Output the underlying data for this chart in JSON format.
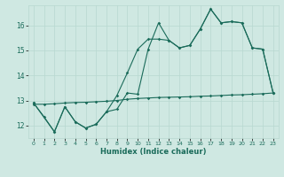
{
  "xlabel": "Humidex (Indice chaleur)",
  "bg_color": "#cfe8e2",
  "line_color": "#1a6b5a",
  "grid_color": "#b8d8d0",
  "xlim": [
    -0.5,
    23.5
  ],
  "ylim": [
    11.5,
    16.8
  ],
  "yticks": [
    12,
    13,
    14,
    15,
    16
  ],
  "xticks": [
    0,
    1,
    2,
    3,
    4,
    5,
    6,
    7,
    8,
    9,
    10,
    11,
    12,
    13,
    14,
    15,
    16,
    17,
    18,
    19,
    20,
    21,
    22,
    23
  ],
  "line1_x": [
    0,
    1,
    2,
    3,
    4,
    5,
    6,
    7,
    8,
    9,
    10,
    11,
    12,
    13,
    14,
    15,
    16,
    17,
    18,
    19,
    20,
    21,
    22,
    23
  ],
  "line1_y": [
    12.9,
    12.35,
    11.75,
    12.75,
    12.15,
    11.9,
    12.05,
    12.55,
    12.65,
    13.3,
    13.25,
    15.05,
    16.1,
    15.4,
    15.1,
    15.2,
    15.85,
    16.65,
    16.1,
    16.15,
    16.1,
    15.1,
    15.05,
    13.3
  ],
  "line2_x": [
    0,
    2,
    3,
    4,
    5,
    6,
    7,
    8,
    9,
    10,
    11,
    12,
    13,
    14,
    15,
    16,
    17,
    18,
    19,
    20,
    21,
    22,
    23
  ],
  "line2_y": [
    12.9,
    11.75,
    12.75,
    12.15,
    11.9,
    12.05,
    12.55,
    13.2,
    14.1,
    15.05,
    15.45,
    15.45,
    15.4,
    15.1,
    15.2,
    15.85,
    16.65,
    16.1,
    16.15,
    16.1,
    15.1,
    15.05,
    13.3
  ],
  "line3_x": [
    0,
    1,
    2,
    3,
    4,
    5,
    6,
    7,
    8,
    9,
    10,
    11,
    12,
    13,
    14,
    15,
    16,
    17,
    18,
    19,
    20,
    21,
    22,
    23
  ],
  "line3_y": [
    12.85,
    12.85,
    12.87,
    12.9,
    12.92,
    12.93,
    12.95,
    12.97,
    13.0,
    13.05,
    13.08,
    13.1,
    13.12,
    13.13,
    13.14,
    13.15,
    13.17,
    13.18,
    13.2,
    13.22,
    13.23,
    13.25,
    13.27,
    13.3
  ]
}
